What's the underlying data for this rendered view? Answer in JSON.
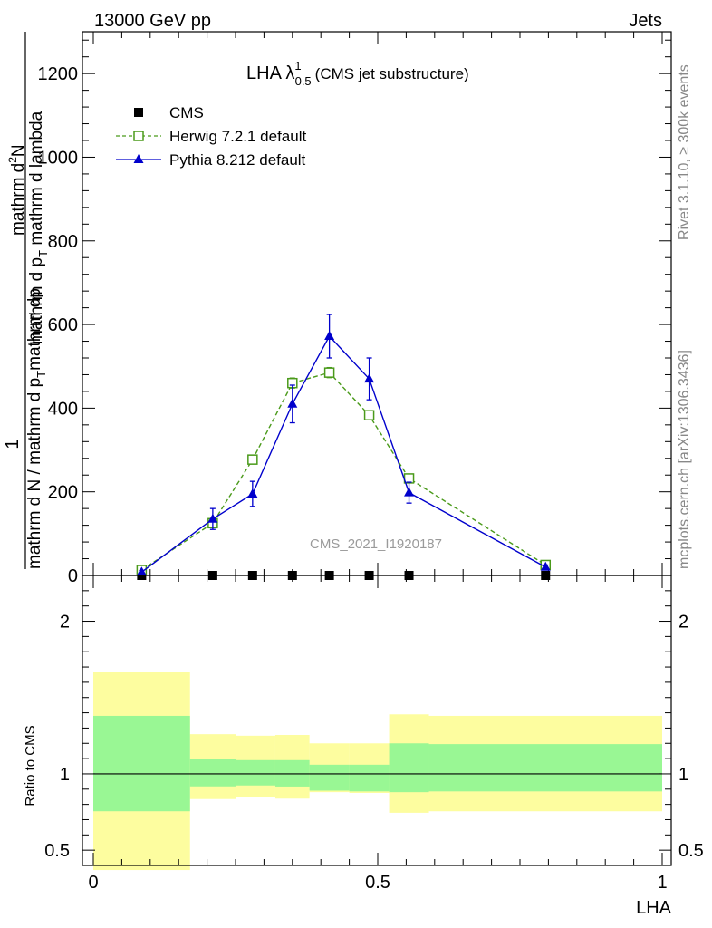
{
  "header": {
    "left": "13000 GeV pp",
    "right": "Jets"
  },
  "side_labels": {
    "rivet": "Rivet 3.1.10, ≥ 300k events",
    "mcplots": "mcplots.cern.ch [arXiv:1306.3436]"
  },
  "chart_data": [
    {
      "type": "line",
      "title_main": "LHA λ",
      "title_sup": "1",
      "title_sub": "0.5",
      "title_tail": "(CMS jet substructure)",
      "ylabel_numerator": "1",
      "ylabel_denominator": "mathrm d N / mathrm d p_T mathrm d p_T mathrm d lambda",
      "ylabel_top": "mathrm d²N",
      "ylabel_mid": "mathrm d p_T mathrm d lambda",
      "ylabel_bottom": "mathrm d N / mathrm d p_T",
      "ylabel_fraction_top": "mathrm d",
      "ylabel_fraction_mid": "mathrm d p",
      "ylabel_parts": {
        "numerator": "1",
        "denominator": "mathrm d N / mathrm d p",
        "denominator_sub": "T",
        "mid_dn": "mathrm d",
        "mid_p": "p",
        "top_numer": "mathrm d",
        "top_numer_sup": "2",
        "top_numer_tail": "N",
        "top_denom": "mathrm d p",
        "top_denom_sub": "T",
        "top_denom_tail": " mathrm d lambda"
      },
      "xlim": [
        0,
        1
      ],
      "ylim": [
        0,
        1300
      ],
      "y_ticks": [
        0,
        200,
        400,
        600,
        800,
        1000,
        1200
      ],
      "y_tick_labels": [
        "0",
        "200",
        "400",
        "600",
        "800",
        "1000",
        "1200"
      ],
      "watermark": "CMS_2021_I1920187",
      "legend_position": "top-left",
      "series": [
        {
          "name": "CMS",
          "marker": "square-filled",
          "color": "#000000",
          "x": [
            0.085,
            0.21,
            0.28,
            0.35,
            0.415,
            0.485,
            0.555,
            0.795
          ],
          "y": [
            0,
            0,
            0,
            0,
            0,
            0,
            0,
            0
          ]
        },
        {
          "name": "Herwig 7.2.1 default",
          "marker": "square-open",
          "line": "dashed",
          "color": "#4a9a1a",
          "x": [
            0.085,
            0.21,
            0.28,
            0.35,
            0.415,
            0.485,
            0.555,
            0.795
          ],
          "y": [
            13,
            125,
            277,
            460,
            485,
            383,
            232,
            25
          ],
          "yerr": [
            3,
            8,
            10,
            12,
            12,
            10,
            8,
            3
          ]
        },
        {
          "name": "Pythia 8.212 default",
          "marker": "triangle-filled",
          "line": "solid",
          "color": "#0000cc",
          "x": [
            0.085,
            0.21,
            0.28,
            0.35,
            0.415,
            0.485,
            0.555,
            0.795
          ],
          "y": [
            8,
            135,
            195,
            410,
            572,
            470,
            198,
            20
          ],
          "yerr": [
            4,
            25,
            30,
            45,
            52,
            50,
            25,
            5
          ]
        }
      ]
    },
    {
      "type": "area",
      "ylabel": "Ratio to CMS",
      "xlabel": "LHA",
      "xlim": [
        0,
        1
      ],
      "ylim": [
        0.4,
        2.3
      ],
      "y_ticks": [
        0.5,
        1,
        2
      ],
      "y_tick_labels": [
        "0.5",
        "1",
        "2"
      ],
      "x_ticks": [
        0,
        0.5,
        1
      ],
      "x_tick_labels": [
        "0",
        "0.5",
        "1"
      ],
      "reference_line": 1,
      "bands": [
        {
          "x0": 0.0,
          "x1": 0.17,
          "green": [
            0.755,
            1.38
          ],
          "yellow": [
            0.37,
            1.665
          ]
        },
        {
          "x0": 0.17,
          "x1": 0.25,
          "green": [
            0.918,
            1.095
          ],
          "yellow": [
            0.835,
            1.26
          ]
        },
        {
          "x0": 0.25,
          "x1": 0.32,
          "green": [
            0.924,
            1.09
          ],
          "yellow": [
            0.849,
            1.25
          ]
        },
        {
          "x0": 0.32,
          "x1": 0.38,
          "green": [
            0.917,
            1.09
          ],
          "yellow": [
            0.838,
            1.255
          ]
        },
        {
          "x0": 0.38,
          "x1": 0.45,
          "green": [
            0.89,
            1.06
          ],
          "yellow": [
            0.88,
            1.2
          ]
        },
        {
          "x0": 0.45,
          "x1": 0.52,
          "green": [
            0.885,
            1.06
          ],
          "yellow": [
            0.875,
            1.2
          ]
        },
        {
          "x0": 0.52,
          "x1": 0.59,
          "green": [
            0.88,
            1.2
          ],
          "yellow": [
            0.745,
            1.39
          ]
        },
        {
          "x0": 0.59,
          "x1": 1.0,
          "green": [
            0.885,
            1.195
          ],
          "yellow": [
            0.755,
            1.38
          ]
        }
      ]
    }
  ],
  "colors": {
    "green_band": "#99f794",
    "yellow_band": "#fdfd9f",
    "herwig": "#4a9a1a",
    "pythia": "#0000cc",
    "watermark": "#9a9a9a"
  }
}
